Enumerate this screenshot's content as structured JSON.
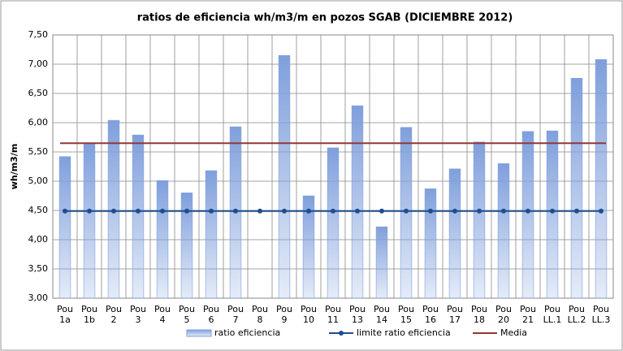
{
  "chart_data": {
    "type": "bar",
    "title": "ratios de eficiencia wh/m3/m en pozos SGAB (DICIEMBRE 2012)",
    "y_label": "wh/m3/m",
    "categories": [
      "Pou 1a",
      "Pou 1b",
      "Pou 2",
      "Pou 3",
      "Pou 4",
      "Pou 5",
      "Pou 6",
      "Pou 7",
      "Pou 8",
      "Pou 9",
      "Pou 10",
      "Pou 11",
      "Pou 13",
      "Pou 14",
      "Pou 15",
      "Pou 16",
      "Pou 17",
      "Pou 18",
      "Pou 20",
      "Pou 21",
      "Pou LL.1",
      "Pou LL.2",
      "Pou LL.3"
    ],
    "series": [
      {
        "name": "ratio eficiencia",
        "type": "bar",
        "color": "#7f9fdc",
        "values": [
          5.42,
          5.65,
          6.04,
          5.79,
          5.01,
          4.8,
          5.18,
          5.93,
          null,
          7.15,
          4.75,
          5.57,
          6.29,
          4.22,
          5.92,
          4.87,
          5.21,
          5.67,
          5.3,
          5.85,
          5.86,
          6.76,
          7.08
        ]
      },
      {
        "name": "limite ratio eficiencia",
        "type": "line",
        "marker": true,
        "color": "#1f4e8c",
        "values": [
          4.49,
          4.49,
          4.49,
          4.49,
          4.49,
          4.49,
          4.49,
          4.49,
          4.49,
          4.49,
          4.49,
          4.49,
          4.49,
          4.49,
          4.49,
          4.49,
          4.49,
          4.49,
          4.49,
          4.49,
          4.49,
          4.49,
          4.49
        ]
      },
      {
        "name": "Media",
        "type": "line",
        "marker": false,
        "color": "#943634",
        "values": [
          5.65,
          5.65,
          5.65,
          5.65,
          5.65,
          5.65,
          5.65,
          5.65,
          5.65,
          5.65,
          5.65,
          5.65,
          5.65,
          5.65,
          5.65,
          5.65,
          5.65,
          5.65,
          5.65,
          5.65,
          5.65,
          5.65,
          5.65
        ]
      }
    ],
    "ylim": [
      3,
      7.5
    ],
    "yticks": [
      {
        "value": 3,
        "label": "3,00"
      },
      {
        "value": 3.5,
        "label": "3,50"
      },
      {
        "value": 4,
        "label": "4,00"
      },
      {
        "value": 4.5,
        "label": "4,50"
      },
      {
        "value": 5,
        "label": "5,00"
      },
      {
        "value": 5.5,
        "label": "5,50"
      },
      {
        "value": 6,
        "label": "6,00"
      },
      {
        "value": 6.5,
        "label": "6,50"
      },
      {
        "value": 7,
        "label": "7,00"
      },
      {
        "value": 7.5,
        "label": "7,50"
      }
    ],
    "grid": true,
    "legend": "bottom"
  }
}
